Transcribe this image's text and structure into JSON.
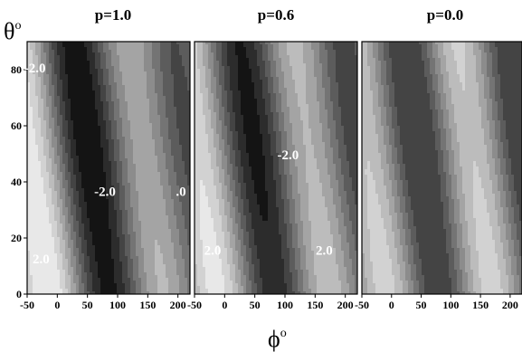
{
  "chart_data": {
    "type": "heatmap",
    "shared_axes": {
      "xlabel": "ϕ",
      "xlabel_sup": "o",
      "ylabel": "θ",
      "ylabel_sup": "o",
      "xlim": [
        -50,
        220
      ],
      "ylim": [
        0,
        90
      ],
      "xticks": [
        -50,
        0,
        50,
        100,
        150,
        200
      ],
      "yticks": [
        0,
        20,
        40,
        60,
        80
      ],
      "colormap": "grayscale, filled contours"
    },
    "panels": [
      {
        "title": "p=1.0",
        "p": 1.0,
        "contour_labels": [
          {
            "text": "-2.0",
            "phi": -37,
            "theta": 79
          },
          {
            "text": "-2.0",
            "phi": 79,
            "theta": 35
          },
          {
            "text": "2.0",
            "phi": -27,
            "theta": 11
          },
          {
            "text": ".0",
            "phi": 205,
            "theta": 35
          }
        ]
      },
      {
        "title": "p=0.6",
        "p": 0.6,
        "contour_labels": [
          {
            "text": "-2.0",
            "phi": 105,
            "theta": 48
          },
          {
            "text": "2.0",
            "phi": -20,
            "theta": 14
          },
          {
            "text": "2.0",
            "phi": 165,
            "theta": 14
          }
        ]
      },
      {
        "title": "p=0.0",
        "p": 0.0,
        "contour_labels": []
      }
    ]
  }
}
